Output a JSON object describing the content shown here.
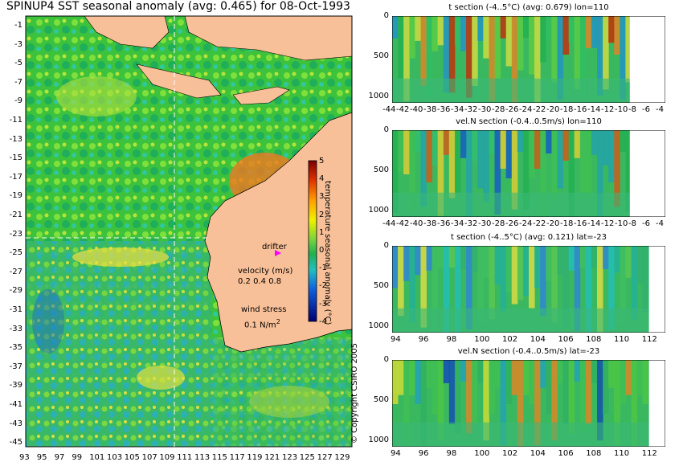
{
  "title": "SPINUP4 SST seasonal anomaly (avg: 0.465) for 08-Oct-1993",
  "map": {
    "lon_ticks": [
      "93",
      "95",
      "97",
      "99",
      "101",
      "103",
      "105",
      "107",
      "109",
      "111",
      "113",
      "115",
      "117",
      "119",
      "121",
      "123",
      "125",
      "127",
      "129"
    ],
    "lat_ticks": [
      "-1",
      "-3",
      "-5",
      "-7",
      "-9",
      "-11",
      "-13",
      "-15",
      "-17",
      "-19",
      "-21",
      "-23",
      "-25",
      "-27",
      "-29",
      "-31",
      "-33",
      "-35",
      "-37",
      "-39",
      "-41",
      "-43",
      "-45"
    ],
    "drifter_label": "drifter",
    "velocity_label": "velocity (m/s)",
    "velocity_scale": [
      "0.2",
      "0.4",
      "0.8"
    ],
    "wind_label": "wind stress",
    "wind_scale": "0.1 N/m",
    "wind_sup": "2",
    "colorbar_label": "temperature seasonal anomaly (°C)",
    "colorbar_ticks": [
      "5",
      "4",
      "3",
      "2",
      "1",
      "0",
      "-1",
      "-2",
      "-3",
      "-4"
    ],
    "copyright": "© Copyright CSIRO 2005"
  },
  "panels": [
    {
      "title": "t section (-4..5°C) (avg: 0.679) lon=110",
      "x_ticks": [
        "-44",
        "-42",
        "-40",
        "-38",
        "-36",
        "-34",
        "-32",
        "-30",
        "-28",
        "-26",
        "-24",
        "-22",
        "-20",
        "-18",
        "-16",
        "-14",
        "-12",
        "-10",
        "-8",
        "-6",
        "-4"
      ],
      "y_ticks": [
        "0",
        "500",
        "1000"
      ]
    },
    {
      "title": "vel.N section (-0.4..0.5m/s) lon=110",
      "x_ticks": [
        "-44",
        "-42",
        "-40",
        "-38",
        "-36",
        "-34",
        "-32",
        "-30",
        "-28",
        "-26",
        "-24",
        "-22",
        "-20",
        "-18",
        "-16",
        "-14",
        "-12",
        "-10",
        "-8",
        "-6",
        "-4"
      ],
      "y_ticks": [
        "0",
        "500",
        "1000"
      ]
    },
    {
      "title": "t section (-4..5°C) (avg: 0.121) lat=-23",
      "x_ticks": [
        "94",
        "96",
        "98",
        "100",
        "102",
        "104",
        "106",
        "108",
        "110",
        "112"
      ],
      "y_ticks": [
        "0",
        "500",
        "1000"
      ]
    },
    {
      "title": "vel.N section (-0.4..0.5m/s) lat=-23",
      "x_ticks": [
        "94",
        "96",
        "98",
        "100",
        "102",
        "104",
        "106",
        "108",
        "110",
        "112"
      ],
      "y_ticks": [
        "0",
        "500",
        "1000"
      ]
    }
  ],
  "chart_data": [
    {
      "type": "heatmap",
      "title": "SPINUP4 SST seasonal anomaly (avg: 0.465) for 08-Oct-1993",
      "xlabel": "",
      "ylabel": "",
      "xlim": [
        93,
        130
      ],
      "ylim": [
        -45,
        0
      ],
      "colorbar": {
        "label": "temperature seasonal anomaly (°C)",
        "range": [
          -4,
          5
        ]
      }
    },
    {
      "type": "heatmap",
      "title": "t section (-4..5°C) (avg: 0.679) lon=110",
      "xlim": [
        -45,
        -3
      ],
      "ylim": [
        1050,
        0
      ],
      "colorbar_range": [
        -4,
        5
      ]
    },
    {
      "type": "heatmap",
      "title": "vel.N section (-0.4..0.5m/s) lon=110",
      "xlim": [
        -45,
        -3
      ],
      "ylim": [
        1050,
        0
      ],
      "colorbar_range": [
        -0.4,
        0.5
      ]
    },
    {
      "type": "heatmap",
      "title": "t section (-4..5°C) (avg: 0.121) lat=-23",
      "xlim": [
        93,
        114
      ],
      "ylim": [
        1050,
        0
      ],
      "colorbar_range": [
        -4,
        5
      ]
    },
    {
      "type": "heatmap",
      "title": "vel.N section (-0.4..0.5m/s) lat=-23",
      "xlim": [
        93,
        114
      ],
      "ylim": [
        1050,
        0
      ],
      "colorbar_range": [
        -0.4,
        0.5
      ]
    }
  ]
}
